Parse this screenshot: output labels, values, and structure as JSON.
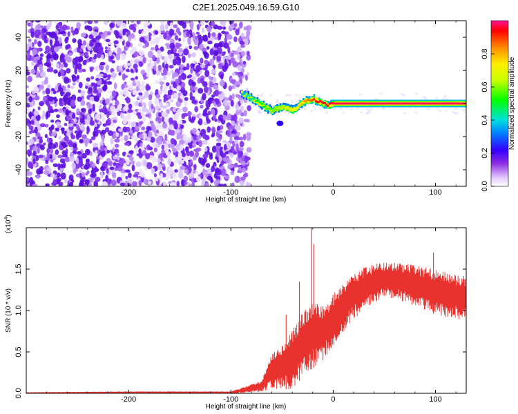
{
  "title": "C2E1.2025.049.16.59.G10",
  "chart_data": [
    {
      "type": "heatmap",
      "xlabel": "Height of straight line (km)",
      "ylabel": "Frequency (Hz)",
      "xlim": [
        -300,
        130
      ],
      "ylim": [
        -50,
        50
      ],
      "x_ticks": [
        -200,
        -100,
        0,
        100
      ],
      "x_tick_labels": [
        "-200",
        "-100",
        "0",
        "100"
      ],
      "y_ticks": [
        -40,
        -20,
        0,
        20,
        40
      ],
      "y_tick_labels": [
        "-40",
        "-20",
        "0",
        "20",
        "40"
      ],
      "colorbar": {
        "label": "Normalized spectral amplitude",
        "range": [
          0,
          1
        ],
        "ticks": [
          0.0,
          0.2,
          0.4,
          0.6,
          0.8
        ],
        "tick_labels": [
          "0.0",
          "0.2",
          "0.4",
          "0.6",
          "0.8"
        ]
      },
      "noise_region_x": [
        -300,
        -82
      ],
      "signal_trace": {
        "x": [
          -90,
          -85,
          -80,
          -75,
          -70,
          -65,
          -60,
          -55,
          -50,
          -45,
          -40,
          -35,
          -30,
          -25,
          -20,
          -15,
          -10,
          -5,
          0,
          20,
          50,
          80,
          100,
          130
        ],
        "y": [
          6,
          5,
          3,
          1,
          -1,
          -3,
          -4,
          -3,
          -2,
          -3,
          -4,
          -2,
          1,
          2,
          3,
          1,
          0,
          -1,
          0,
          0,
          0,
          0,
          0,
          0
        ],
        "amplitude": [
          0.35,
          0.4,
          0.45,
          0.5,
          0.5,
          0.55,
          0.55,
          0.6,
          0.6,
          0.65,
          0.7,
          0.75,
          0.8,
          0.85,
          0.9,
          0.95,
          0.95,
          0.95,
          0.97,
          0.98,
          0.98,
          0.98,
          0.98,
          0.98
        ]
      }
    },
    {
      "type": "line",
      "xlabel": "Height of straight line (km)",
      "ylabel": "SNR (10 * v/v)",
      "y_scale_label": "(x10",
      "y_scale_exponent": "4",
      "y_scale_close": ")",
      "xlim": [
        -300,
        130
      ],
      "ylim": [
        0,
        2.0
      ],
      "x_ticks": [
        -200,
        -100,
        0,
        100
      ],
      "x_tick_labels": [
        "-200",
        "-100",
        "0",
        "100"
      ],
      "y_ticks": [
        0.0,
        0.5,
        1.0,
        1.5
      ],
      "y_tick_labels": [
        "0.0",
        "0.5",
        "1.0",
        "1.5"
      ],
      "series": [
        {
          "color": "#e8322e",
          "envelope_x": [
            -300,
            -200,
            -100,
            -70,
            -60,
            -50,
            -40,
            -30,
            -20,
            -10,
            0,
            10,
            20,
            30,
            40,
            50,
            60,
            70,
            80,
            90,
            100,
            110,
            120,
            130
          ],
          "envelope_max": [
            0.01,
            0.02,
            0.02,
            0.15,
            0.5,
            0.6,
            0.75,
            1.0,
            1.1,
            1.05,
            1.2,
            1.35,
            1.45,
            1.52,
            1.56,
            1.58,
            1.58,
            1.57,
            1.55,
            1.52,
            1.5,
            1.46,
            1.43,
            1.42
          ],
          "envelope_min": [
            0.0,
            0.0,
            0.0,
            0.02,
            0.05,
            0.05,
            0.05,
            0.2,
            0.3,
            0.4,
            0.55,
            0.75,
            0.9,
            1.0,
            1.1,
            1.15,
            1.15,
            1.1,
            1.05,
            1.0,
            0.95,
            0.92,
            0.9,
            0.88
          ],
          "spikes_x": [
            -46,
            -33,
            -21,
            -19,
            -10,
            98
          ],
          "spikes_y": [
            0.95,
            1.35,
            2.0,
            1.8,
            1.05,
            1.7
          ]
        }
      ]
    }
  ]
}
